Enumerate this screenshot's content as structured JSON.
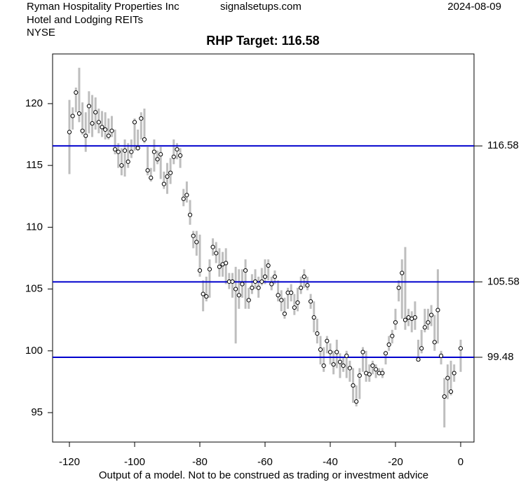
{
  "chart_data": {
    "type": "range",
    "company": "Ryman Hospitality Properties Inc",
    "sector": "Hotel and Lodging REITs",
    "exchange": "NYSE",
    "site": "signalsetups.com",
    "date": "2024-08-09",
    "title": "RHP Target: 116.58",
    "footnote": "Output of a model. Not to be construed as trading or investment advice",
    "xlim": [
      -125.16,
      4.09
    ],
    "ylim": [
      92.62,
      124.02
    ],
    "xticks": [
      -120,
      -100,
      -80,
      -60,
      -40,
      -20,
      0
    ],
    "yticks": [
      95,
      100,
      105,
      110,
      115,
      120
    ],
    "targets": [
      116.58,
      105.58,
      99.48
    ],
    "target_color": "#0000cd",
    "range_color": "#bebebe",
    "x": [
      -120,
      -119,
      -118,
      -117,
      -116,
      -115,
      -114,
      -113,
      -112,
      -111,
      -110,
      -109,
      -108,
      -107,
      -106,
      -105,
      -104,
      -103,
      -102,
      -101,
      -100,
      -99,
      -98,
      -97,
      -96,
      -95,
      -94,
      -93,
      -92,
      -91,
      -90,
      -89,
      -88,
      -87,
      -86,
      -85,
      -84,
      -83,
      -82,
      -81,
      -80,
      -79,
      -78,
      -77,
      -76,
      -75,
      -74,
      -73,
      -72,
      -71,
      -70,
      -69,
      -68,
      -67,
      -66,
      -65,
      -64,
      -63,
      -62,
      -61,
      -60,
      -59,
      -58,
      -57,
      -56,
      -55,
      -54,
      -53,
      -52,
      -51,
      -50,
      -49,
      -48,
      -47,
      -46,
      -45,
      -44,
      -43,
      -42,
      -41,
      -40,
      -39,
      -38,
      -37,
      -36,
      -35,
      -34,
      -33,
      -32,
      -31,
      -30,
      -29,
      -28,
      -27,
      -26,
      -25,
      -24,
      -23,
      -22,
      -21,
      -20,
      -19,
      -18,
      -17,
      -16,
      -15,
      -14,
      -13,
      -12,
      -11,
      -10,
      -9,
      -8,
      -7,
      -6,
      -5,
      -4,
      -3,
      -2,
      0
    ],
    "close": [
      117.7,
      119.0,
      120.9,
      119.2,
      117.8,
      117.4,
      119.8,
      118.4,
      119.3,
      118.5,
      118.1,
      117.9,
      117.4,
      117.8,
      116.3,
      116.1,
      115.0,
      116.2,
      115.3,
      116.1,
      118.5,
      116.4,
      118.8,
      117.1,
      114.6,
      114.0,
      116.1,
      115.5,
      115.9,
      113.5,
      114.1,
      114.4,
      115.7,
      116.3,
      115.8,
      112.3,
      112.6,
      111.0,
      109.3,
      108.8,
      106.5,
      104.6,
      104.4,
      106.6,
      108.4,
      107.9,
      106.8,
      107.0,
      107.1,
      105.6,
      105.6,
      105.0,
      104.5,
      105.4,
      106.5,
      104.1,
      105.1,
      105.6,
      105.1,
      105.6,
      106.0,
      106.9,
      105.4,
      106.0,
      104.5,
      104.1,
      103.0,
      104.7,
      104.7,
      103.5,
      103.9,
      105.1,
      106.0,
      105.3,
      104.0,
      102.7,
      101.4,
      100.1,
      98.8,
      100.8,
      99.9,
      98.9,
      99.9,
      99.1,
      98.8,
      99.6,
      98.6,
      97.2,
      95.9,
      98.0,
      99.9,
      98.2,
      98.1,
      98.8,
      98.5,
      98.2,
      98.2,
      99.8,
      100.5,
      101.2,
      102.3,
      105.1,
      106.3,
      102.5,
      102.7,
      102.6,
      102.7,
      99.3,
      100.2,
      101.9,
      102.3,
      102.9,
      100.7,
      103.3,
      99.6,
      96.3,
      97.8,
      96.7,
      98.2,
      100.2
    ],
    "high": [
      120.3,
      119.7,
      121.3,
      122.9,
      120.1,
      119.3,
      121.0,
      120.7,
      120.5,
      119.6,
      119.4,
      119.3,
      118.8,
      119.0,
      117.9,
      116.8,
      116.4,
      117.1,
      116.8,
      117.1,
      118.8,
      117.9,
      119.3,
      119.6,
      116.5,
      114.8,
      117.1,
      116.2,
      116.5,
      114.5,
      115.2,
      115.6,
      117.1,
      116.8,
      116.4,
      113.1,
      113.7,
      112.2,
      109.7,
      109.7,
      109.4,
      105.7,
      106.0,
      107.4,
      109.1,
      108.8,
      108.3,
      108.0,
      108.3,
      106.3,
      106.3,
      106.8,
      106.6,
      106.6,
      107.4,
      105.1,
      106.2,
      106.6,
      106.0,
      106.7,
      107.4,
      107.4,
      106.0,
      106.5,
      105.7,
      104.9,
      104.3,
      105.1,
      105.4,
      104.6,
      105.1,
      106.0,
      106.6,
      106.0,
      104.6,
      104.0,
      102.6,
      101.2,
      100.3,
      101.2,
      100.6,
      100.0,
      100.9,
      99.8,
      99.5,
      100.0,
      99.2,
      98.6,
      97.2,
      98.6,
      100.3,
      100.0,
      98.9,
      99.2,
      98.9,
      98.6,
      98.6,
      100.0,
      101.2,
      101.7,
      103.4,
      105.7,
      107.4,
      108.4,
      103.4,
      103.2,
      104.0,
      100.9,
      101.7,
      103.4,
      103.4,
      103.7,
      102.9,
      106.6,
      100.0,
      97.8,
      98.9,
      99.2,
      98.9,
      100.9
    ],
    "low": [
      114.3,
      117.9,
      119.3,
      118.5,
      117.5,
      116.1,
      117.6,
      117.3,
      117.9,
      117.6,
      117.3,
      117.1,
      117.1,
      117.3,
      115.9,
      114.8,
      114.2,
      114.1,
      114.8,
      115.6,
      116.2,
      116.2,
      117.1,
      116.8,
      114.2,
      113.7,
      114.5,
      115.1,
      113.9,
      113.1,
      112.7,
      113.5,
      115.1,
      115.5,
      114.8,
      111.7,
      112.0,
      110.2,
      108.3,
      107.7,
      106.0,
      103.2,
      104.0,
      104.3,
      107.7,
      107.1,
      106.0,
      106.0,
      105.4,
      105.0,
      104.3,
      100.6,
      103.4,
      104.3,
      103.4,
      103.4,
      104.6,
      105.0,
      104.3,
      105.3,
      105.4,
      105.7,
      104.9,
      105.4,
      104.0,
      103.2,
      102.6,
      103.4,
      104.0,
      102.9,
      103.2,
      104.6,
      105.1,
      104.9,
      103.4,
      101.5,
      100.6,
      98.9,
      98.3,
      99.8,
      98.9,
      98.1,
      98.6,
      97.8,
      98.3,
      97.8,
      97.5,
      95.8,
      95.5,
      96.1,
      98.3,
      97.5,
      97.5,
      98.1,
      97.8,
      98.1,
      97.8,
      98.9,
      100.0,
      100.6,
      101.7,
      104.0,
      102.6,
      101.7,
      102.0,
      101.5,
      101.7,
      99.2,
      99.8,
      101.5,
      101.7,
      102.0,
      100.0,
      100.6,
      98.9,
      93.8,
      96.1,
      96.4,
      97.5,
      98.3
    ]
  }
}
